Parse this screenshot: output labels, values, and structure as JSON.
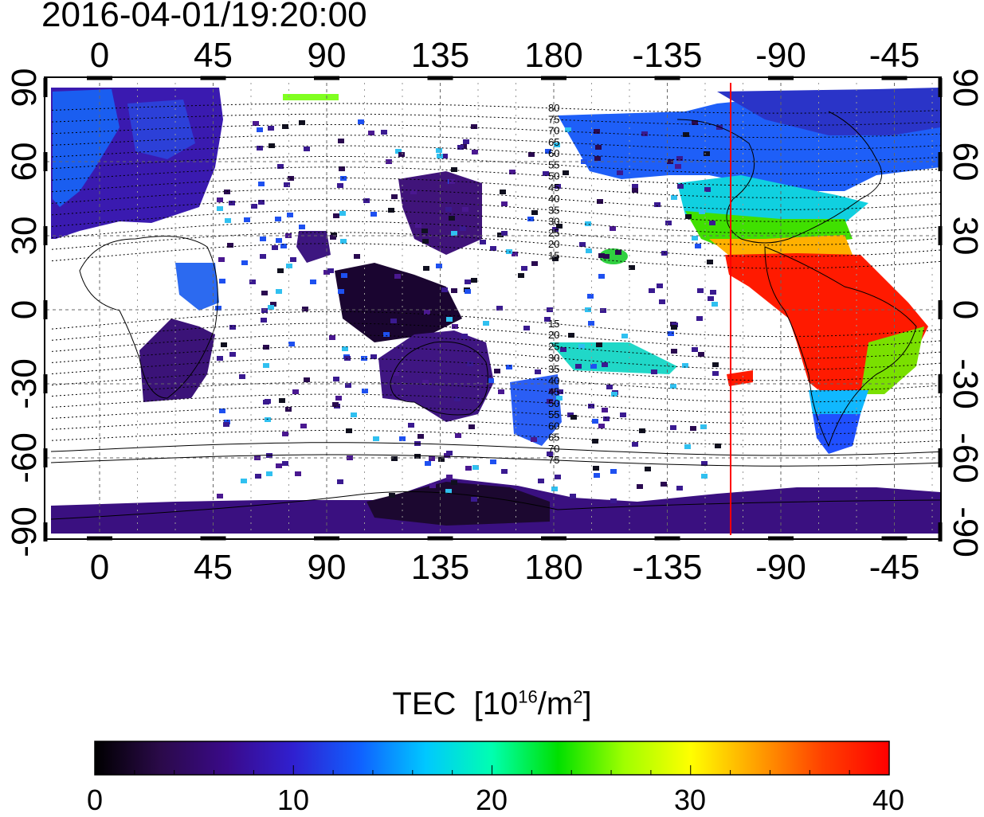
{
  "title": "2016-04-01/19:20:00",
  "top_lon_ticks": [
    "0",
    "45",
    "90",
    "135",
    "180",
    "-135",
    "-90",
    "-45"
  ],
  "bottom_lon_ticks": [
    "0",
    "45",
    "90",
    "135",
    "180",
    "-135",
    "-90",
    "-45"
  ],
  "left_lat_ticks": [
    "90",
    "60",
    "30",
    "0",
    "-30",
    "-60",
    "-90"
  ],
  "right_lat_ticks": [
    "90",
    "60",
    "30",
    "0",
    "-30",
    "-60",
    "-90"
  ],
  "contour_labels_north": [
    "80",
    "75",
    "70",
    "65",
    "60",
    "55",
    "50",
    "45",
    "40",
    "35",
    "30",
    "25",
    "20",
    "15"
  ],
  "contour_labels_south": [
    "15",
    "20",
    "25",
    "30",
    "35",
    "40",
    "45",
    "50",
    "55",
    "60",
    "65",
    "70",
    "75"
  ],
  "colorbar": {
    "title_main": "TEC",
    "unit_open": "[10",
    "unit_exp": "16",
    "unit_mid": "/m",
    "unit_exp2": "2",
    "unit_close": "]",
    "ticks": [
      "0",
      "10",
      "20",
      "30",
      "40"
    ],
    "min": 0,
    "max": 40,
    "colors": [
      "#000000",
      "#2b0a4a",
      "#3a0a8a",
      "#3020d0",
      "#1060ff",
      "#00c8ff",
      "#00ffb0",
      "#00e000",
      "#a0ff00",
      "#ffff00",
      "#ffa000",
      "#ff4000",
      "#ff0000"
    ]
  },
  "map": {
    "subsolar_longitude": -110,
    "terminator_color": "#ff0000"
  }
}
